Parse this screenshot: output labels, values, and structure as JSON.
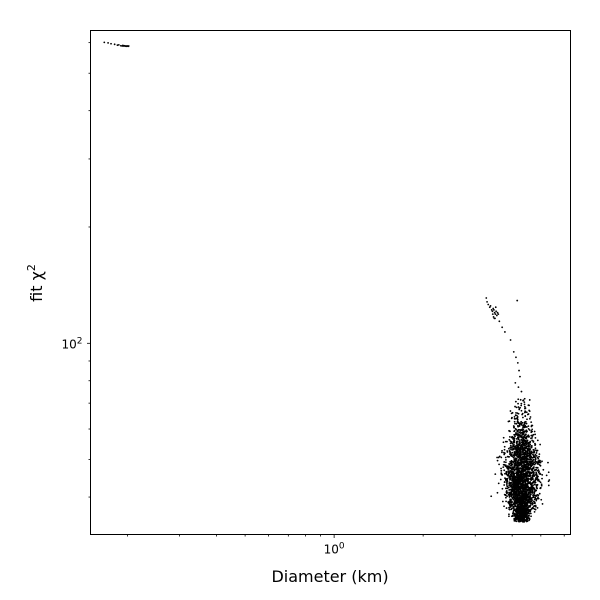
{
  "chart_data": {
    "type": "scatter",
    "title": "",
    "xlabel": "Diameter (km)",
    "ylabel": "fit χ",
    "ylabel_superscript": "2",
    "xscale": "log",
    "yscale": "log",
    "xlim": [
      0.15,
      6.3
    ],
    "ylim": [
      32,
      645
    ],
    "x_major_ticks": [
      {
        "value": 1,
        "label": "10",
        "exp": "0"
      }
    ],
    "y_major_ticks": [
      {
        "value": 100,
        "label": "10",
        "exp": "2"
      }
    ],
    "y_minor_ticks": [
      40,
      50,
      60,
      70,
      80,
      90,
      200,
      300,
      400,
      500,
      600
    ],
    "x_minor_ticks": [
      0.2,
      0.3,
      0.4,
      0.5,
      0.6,
      0.7,
      0.8,
      0.9,
      2,
      3,
      4,
      5,
      6
    ],
    "grid": false,
    "legend": "none",
    "marker_color": "#000000",
    "clusters": [
      {
        "name": "",
        "points": [
          [
            0.167,
            601
          ],
          [
            0.172,
            599
          ],
          [
            0.176,
            596
          ],
          [
            0.181,
            594
          ],
          [
            0.185,
            591
          ],
          [
            0.187,
            592
          ],
          [
            0.19,
            589
          ],
          [
            0.192,
            588
          ],
          [
            0.193,
            590
          ],
          [
            0.194,
            588
          ],
          [
            0.195,
            589
          ],
          [
            0.196,
            588
          ],
          [
            0.197,
            588
          ],
          [
            0.198,
            587
          ],
          [
            0.199,
            588
          ],
          [
            0.2,
            588
          ],
          [
            0.201,
            587
          ],
          [
            0.202,
            588
          ]
        ]
      },
      {
        "name": "",
        "points": [
          [
            3.27,
            131
          ],
          [
            3.29,
            128
          ],
          [
            3.32,
            126
          ],
          [
            3.36,
            124
          ],
          [
            3.38,
            125
          ],
          [
            3.41,
            122
          ],
          [
            3.43,
            121
          ],
          [
            3.45,
            123
          ],
          [
            3.47,
            122
          ],
          [
            3.49,
            120
          ],
          [
            3.51,
            119
          ],
          [
            3.53,
            121
          ],
          [
            3.55,
            118
          ],
          [
            3.46,
            117
          ],
          [
            3.5,
            116
          ],
          [
            3.57,
            120
          ],
          [
            3.59,
            119
          ],
          [
            3.44,
            119
          ],
          [
            3.52,
            124
          ],
          [
            3.48,
            116
          ],
          [
            3.62,
            114
          ],
          [
            3.7,
            110
          ],
          [
            3.78,
            107
          ],
          [
            3.95,
            102
          ],
          [
            4.16,
            129
          ]
        ]
      },
      {
        "name": "",
        "points": [
          [
            4.05,
            95
          ],
          [
            4.12,
            92
          ],
          [
            4.18,
            89
          ],
          [
            4.22,
            85
          ],
          [
            4.25,
            82
          ],
          [
            4.1,
            79
          ],
          [
            4.2,
            77
          ],
          [
            4.3,
            75
          ]
        ]
      }
    ],
    "dense_region": {
      "x_center": 4.3,
      "x_spread": 0.13,
      "y_min": 34.5,
      "y_max": 72,
      "y_peak": 42,
      "count": 2600
    }
  }
}
